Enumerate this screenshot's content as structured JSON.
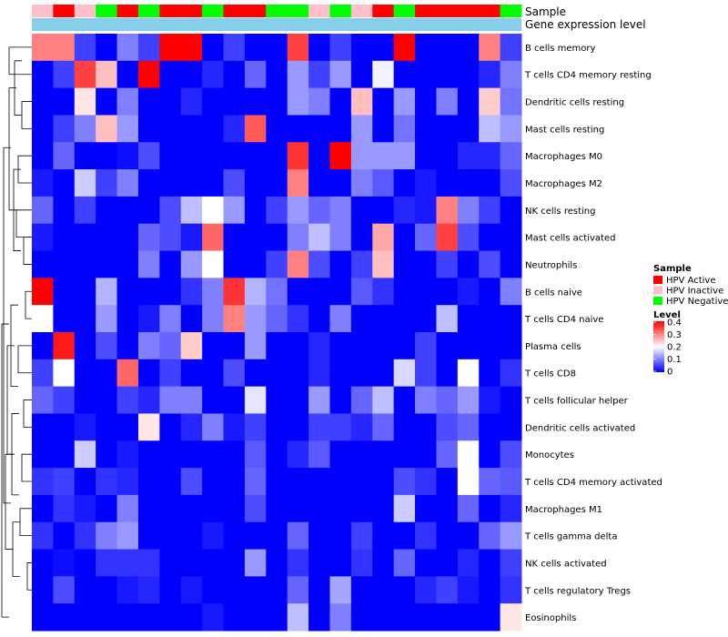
{
  "chart_data": {
    "type": "heatmap",
    "title": "",
    "annotations": {
      "sample_label": "Sample",
      "gene_label": "Gene expression level",
      "sample_groups": [
        "HPV Inactive",
        "HPV Active",
        "HPV Inactive",
        "HPV Negative",
        "HPV Active",
        "HPV Negative",
        "HPV Active",
        "HPV Active",
        "HPV Negative",
        "HPV Active",
        "HPV Active",
        "HPV Negative",
        "HPV Negative",
        "HPV Inactive",
        "HPV Negative",
        "HPV Inactive",
        "HPV Active",
        "HPV Negative",
        "HPV Active",
        "HPV Active",
        "HPV Active",
        "HPV Active",
        "HPV Negative"
      ]
    },
    "rows": [
      "B cells memory",
      "T cells CD4 memory resting",
      "Dendritic cells resting",
      "Mast cells resting",
      "Macrophages M0",
      "Macrophages M2",
      "NK cells resting",
      "Mast cells activated",
      "Neutrophils",
      "B cells naive",
      "T cells CD4 naive",
      "Plasma cells",
      "T cells CD8",
      "T cells follicular helper",
      "Dendritic cells activated",
      "Monocytes",
      "T cells CD4 memory activated",
      "Macrophages M1",
      "T cells gamma delta",
      "NK cells activated",
      "T cells regulatory  Tregs",
      "Eosinophils"
    ],
    "values": [
      [
        0.3,
        0.3,
        0.05,
        0.0,
        0.1,
        0.05,
        0.4,
        0.4,
        0.0,
        0.05,
        0.0,
        0.0,
        0.35,
        0.0,
        0.05,
        0.0,
        0.0,
        0.4,
        0.0,
        0.0,
        0.0,
        0.3,
        0.05
      ],
      [
        0.0,
        0.05,
        0.35,
        0.25,
        0.0,
        0.4,
        0.0,
        0.0,
        0.03,
        0.0,
        0.08,
        0.0,
        0.12,
        0.05,
        0.12,
        0.0,
        0.19,
        0.0,
        0.0,
        0.0,
        0.0,
        0.03,
        0.1
      ],
      [
        0.0,
        0.0,
        0.22,
        0.0,
        0.1,
        0.0,
        0.0,
        0.03,
        0.0,
        0.0,
        0.0,
        0.0,
        0.12,
        0.1,
        0.0,
        0.25,
        0.0,
        0.12,
        0.0,
        0.1,
        0.0,
        0.24,
        0.09
      ],
      [
        0.0,
        0.05,
        0.1,
        0.25,
        0.12,
        0.0,
        0.0,
        0.0,
        0.0,
        0.03,
        0.33,
        0.0,
        0.0,
        0.0,
        0.0,
        0.12,
        0.0,
        0.09,
        0.0,
        0.0,
        0.0,
        0.15,
        0.12
      ],
      [
        0.0,
        0.08,
        0.0,
        0.0,
        0.01,
        0.06,
        0.0,
        0.0,
        0.0,
        0.0,
        0.0,
        0.0,
        0.36,
        0.0,
        0.4,
        0.12,
        0.12,
        0.12,
        0.0,
        0.0,
        0.03,
        0.03,
        0.08
      ],
      [
        0.02,
        0.0,
        0.16,
        0.05,
        0.1,
        0.0,
        0.0,
        0.0,
        0.0,
        0.06,
        0.0,
        0.0,
        0.3,
        0.0,
        0.0,
        0.1,
        0.07,
        0.0,
        0.02,
        0.0,
        0.0,
        0.0,
        0.06
      ],
      [
        0.08,
        0.0,
        0.05,
        0.0,
        0.0,
        0.0,
        0.06,
        0.15,
        0.2,
        0.12,
        0.0,
        0.05,
        0.12,
        0.08,
        0.1,
        0.0,
        0.0,
        0.03,
        0.02,
        0.3,
        0.1,
        0.05,
        0.0
      ],
      [
        0.02,
        0.0,
        0.0,
        0.0,
        0.0,
        0.08,
        0.06,
        0.02,
        0.32,
        0.0,
        0.0,
        0.0,
        0.1,
        0.15,
        0.1,
        0.0,
        0.27,
        0.0,
        0.08,
        0.35,
        0.06,
        0.0,
        0.0
      ],
      [
        0.0,
        0.0,
        0.0,
        0.0,
        0.0,
        0.1,
        0.0,
        0.12,
        0.2,
        0.0,
        0.0,
        0.05,
        0.3,
        0.06,
        0.0,
        0.05,
        0.25,
        0.0,
        0.0,
        0.05,
        0.0,
        0.06,
        0.0
      ],
      [
        0.4,
        0.0,
        0.0,
        0.14,
        0.0,
        0.0,
        0.0,
        0.04,
        0.1,
        0.36,
        0.14,
        0.09,
        0.0,
        0.0,
        0.0,
        0.07,
        0.04,
        0.0,
        0.0,
        0.0,
        0.02,
        0.0,
        0.1
      ],
      [
        0.2,
        0.0,
        0.0,
        0.12,
        0.0,
        0.02,
        0.1,
        0.0,
        0.1,
        0.3,
        0.12,
        0.08,
        0.04,
        0.0,
        0.1,
        0.0,
        0.0,
        0.0,
        0.0,
        0.15,
        0.0,
        0.0,
        0.0
      ],
      [
        0.0,
        0.38,
        0.0,
        0.06,
        0.0,
        0.1,
        0.08,
        0.24,
        0.0,
        0.0,
        0.12,
        0.0,
        0.0,
        0.03,
        0.0,
        0.0,
        0.0,
        0.0,
        0.05,
        0.0,
        0.0,
        0.0,
        0.0
      ],
      [
        0.05,
        0.2,
        0.0,
        0.0,
        0.32,
        0.0,
        0.05,
        0.0,
        0.0,
        0.06,
        0.0,
        0.0,
        0.0,
        0.03,
        0.0,
        0.0,
        0.0,
        0.17,
        0.05,
        0.0,
        0.2,
        0.0,
        0.04
      ],
      [
        0.08,
        0.05,
        0.0,
        0.0,
        0.05,
        0.03,
        0.1,
        0.1,
        0.0,
        0.0,
        0.18,
        0.0,
        0.0,
        0.12,
        0.0,
        0.08,
        0.15,
        0.0,
        0.1,
        0.08,
        0.12,
        0.02,
        0.0
      ],
      [
        0.0,
        0.0,
        0.02,
        0.0,
        0.0,
        0.22,
        0.0,
        0.03,
        0.1,
        0.02,
        0.05,
        0.0,
        0.0,
        0.05,
        0.05,
        0.03,
        0.08,
        0.0,
        0.0,
        0.06,
        0.08,
        0.0,
        0.0
      ],
      [
        0.0,
        0.0,
        0.16,
        0.0,
        0.02,
        0.0,
        0.0,
        0.0,
        0.0,
        0.0,
        0.07,
        0.0,
        0.03,
        0.07,
        0.0,
        0.0,
        0.0,
        0.0,
        0.0,
        0.08,
        0.2,
        0.0,
        0.06
      ],
      [
        0.04,
        0.05,
        0.0,
        0.04,
        0.03,
        0.0,
        0.0,
        0.06,
        0.0,
        0.0,
        0.08,
        0.0,
        0.0,
        0.0,
        0.0,
        0.0,
        0.0,
        0.06,
        0.04,
        0.0,
        0.2,
        0.08,
        0.07
      ],
      [
        0.0,
        0.04,
        0.02,
        0.0,
        0.1,
        0.0,
        0.0,
        0.0,
        0.0,
        0.0,
        0.06,
        0.0,
        0.0,
        0.0,
        0.0,
        0.0,
        0.0,
        0.16,
        0.0,
        0.0,
        0.08,
        0.0,
        0.03
      ],
      [
        0.04,
        0.0,
        0.04,
        0.1,
        0.12,
        0.0,
        0.0,
        0.0,
        0.02,
        0.0,
        0.0,
        0.0,
        0.08,
        0.0,
        0.0,
        0.05,
        0.0,
        0.0,
        0.04,
        0.0,
        0.0,
        0.08,
        0.12
      ],
      [
        0.0,
        0.01,
        0.0,
        0.04,
        0.04,
        0.04,
        0.0,
        0.0,
        0.0,
        0.0,
        0.12,
        0.0,
        0.04,
        0.0,
        0.0,
        0.04,
        0.0,
        0.08,
        0.0,
        0.0,
        0.03,
        0.0,
        0.05
      ],
      [
        0.0,
        0.06,
        0.0,
        0.0,
        0.02,
        0.03,
        0.0,
        0.02,
        0.0,
        0.0,
        0.0,
        0.0,
        0.08,
        0.0,
        0.13,
        0.0,
        0.0,
        0.0,
        0.03,
        0.05,
        0.02,
        0.0,
        0.04
      ],
      [
        0.0,
        0.0,
        0.0,
        0.0,
        0.0,
        0.0,
        0.0,
        0.0,
        0.02,
        0.0,
        0.0,
        0.0,
        0.15,
        0.0,
        0.1,
        0.0,
        0.0,
        0.0,
        0.0,
        0.0,
        0.0,
        0.0,
        0.22
      ]
    ],
    "legend": {
      "sample_title": "Sample",
      "sample_entries": [
        {
          "label": "HPV Active",
          "color": "#ff0000"
        },
        {
          "label": "HPV Inactive",
          "color": "#ffc0cb"
        },
        {
          "label": "HPV Negative",
          "color": "#00ff00"
        }
      ],
      "level_title": "Level",
      "level_ticks": [
        "0.4",
        "0.3",
        "0.2",
        "0.1",
        "0"
      ],
      "level_range": [
        0,
        0.4
      ],
      "placement": "right"
    },
    "colors": {
      "low": "#0000ff",
      "mid": "#ffffff",
      "high": "#ff0000",
      "gene_bar": "#87ceeb"
    }
  }
}
